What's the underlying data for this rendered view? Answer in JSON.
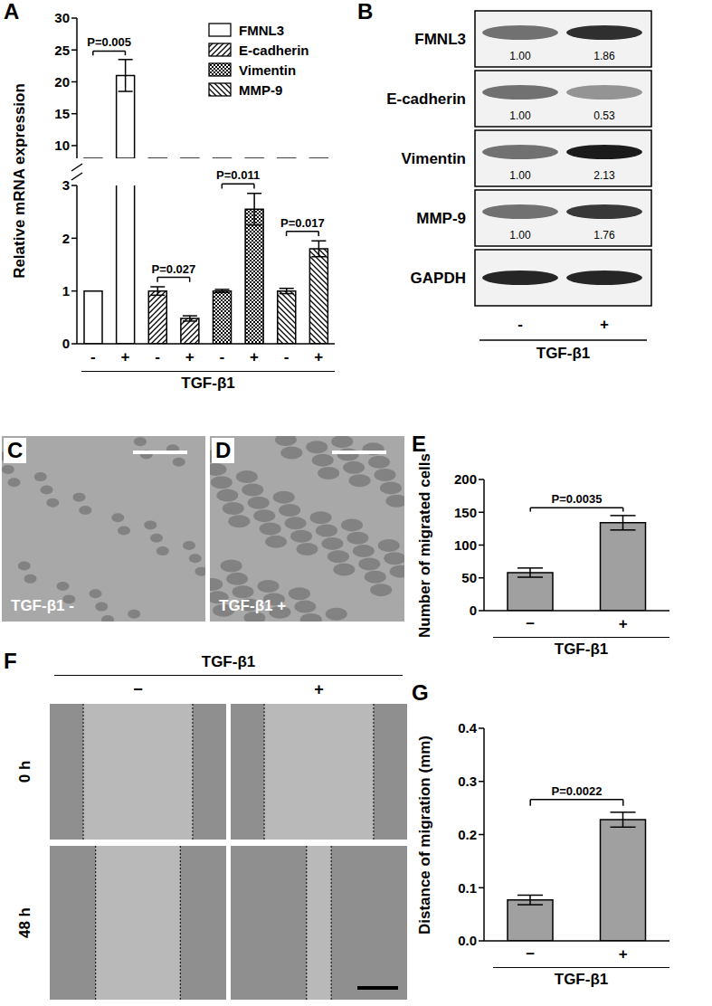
{
  "chart_data": [
    {
      "type": "bar",
      "title": "A",
      "ylabel": "Relative mRNA expression",
      "xlabel": "TGF-β1",
      "categories": [
        "-",
        "+",
        "-",
        "+",
        "-",
        "+",
        "-",
        "+"
      ],
      "series": [
        {
          "name": "FMNL3",
          "color": "#ffffff",
          "values": [
            1,
            21,
            null,
            null,
            null,
            null,
            null,
            null
          ],
          "errors": [
            null,
            2.5,
            null,
            null,
            null,
            null,
            null,
            null
          ]
        },
        {
          "name": "E-cadherin",
          "color": "#000000",
          "values": [
            null,
            null,
            1,
            0.48,
            null,
            null,
            null,
            null
          ],
          "errors": [
            null,
            null,
            0.08,
            0.05,
            null,
            null,
            null,
            null
          ]
        },
        {
          "name": "Vimentin",
          "color": "#000000",
          "values": [
            null,
            null,
            null,
            null,
            1,
            2.55,
            null,
            null
          ],
          "errors": [
            null,
            null,
            null,
            null,
            0.03,
            0.3,
            null,
            null
          ]
        },
        {
          "name": "MMP-9",
          "color": "#000000",
          "values": [
            null,
            null,
            null,
            null,
            null,
            null,
            1,
            1.8
          ],
          "errors": [
            null,
            null,
            null,
            null,
            null,
            null,
            0.05,
            0.15
          ]
        }
      ],
      "ylim": [
        0,
        30
      ],
      "ybreak": [
        3,
        8
      ],
      "yticks": [
        0,
        1,
        2,
        3,
        10,
        15,
        20,
        25,
        30
      ],
      "legend": "upper right",
      "annotations": [
        {
          "label": "P=0.005",
          "between": [
            0,
            1
          ]
        },
        {
          "label": "P=0.027",
          "between": [
            2,
            3
          ]
        },
        {
          "label": "P=0.011",
          "between": [
            4,
            5
          ]
        },
        {
          "label": "P=0.017",
          "between": [
            6,
            7
          ]
        }
      ]
    },
    {
      "type": "bar",
      "title": "E",
      "ylabel": "Number of migrated cells",
      "xlabel": "TGF-β1",
      "categories": [
        "−",
        "+"
      ],
      "values": [
        58,
        134
      ],
      "errors": [
        7,
        11
      ],
      "color": "#a0a0a0",
      "ylim": [
        0,
        200
      ],
      "yticks": [
        0,
        50,
        100,
        150,
        200
      ],
      "annotations": [
        {
          "label": "P=0.0035",
          "between": [
            0,
            1
          ]
        }
      ]
    },
    {
      "type": "bar",
      "title": "G",
      "ylabel": "Distance of migration (mm)",
      "xlabel": "TGF-β1",
      "categories": [
        "−",
        "+"
      ],
      "values": [
        0.077,
        0.228
      ],
      "errors": [
        0.009,
        0.014
      ],
      "color": "#a0a0a0",
      "ylim": [
        0,
        0.4
      ],
      "yticks": [
        {
          "value": 0,
          "label": "0.0"
        },
        0.1,
        0.2,
        0.3,
        0.4
      ],
      "annotations": [
        {
          "label": "P=0.0022",
          "between": [
            0,
            1
          ]
        }
      ]
    }
  ],
  "panels": {
    "B": {
      "title": "B",
      "lanes": [
        "-",
        "+"
      ],
      "xlabel": "TGF-β1",
      "rows": [
        {
          "label": "FMNL3",
          "values": [
            "1.00",
            "1.86"
          ]
        },
        {
          "label": "E-cadherin",
          "values": [
            "1.00",
            "0.53"
          ]
        },
        {
          "label": "Vimentin",
          "values": [
            "1.00",
            "2.13"
          ]
        },
        {
          "label": "MMP-9",
          "values": [
            "1.00",
            "1.76"
          ]
        },
        {
          "label": "GAPDH"
        }
      ]
    },
    "C": {
      "title": "C",
      "caption": "TGF-β1 -"
    },
    "D": {
      "title": "D",
      "caption": "TGF-β1 +"
    },
    "F": {
      "title": "F",
      "header": "TGF-β1",
      "columns": [
        "−",
        "+"
      ],
      "rows": [
        "0 h",
        "48 h"
      ]
    }
  }
}
